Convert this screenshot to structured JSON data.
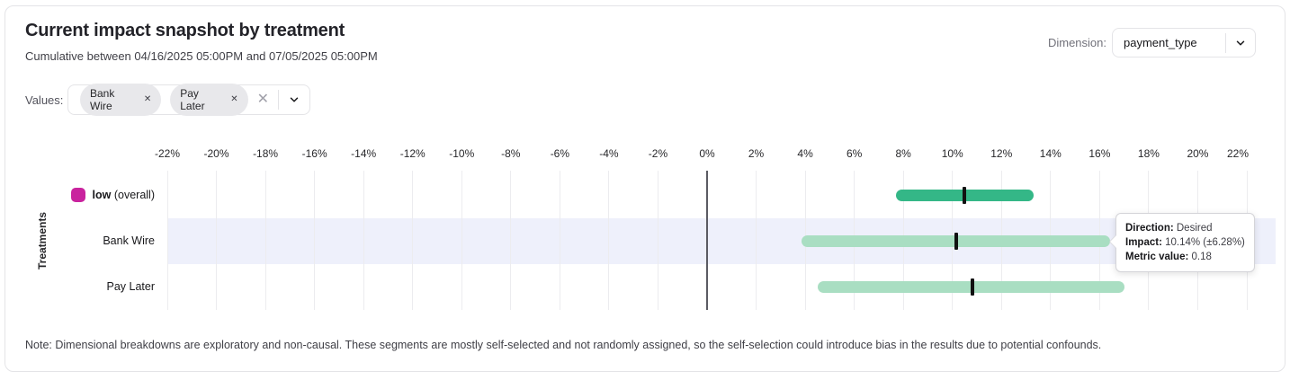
{
  "header": {
    "title": "Current impact snapshot by treatment",
    "subtitle": "Cumulative between 04/16/2025 05:00PM and 07/05/2025 05:00PM"
  },
  "dimension": {
    "label": "Dimension:",
    "selected": "payment_type"
  },
  "values_filter": {
    "label": "Values:",
    "chips": [
      {
        "label": "Bank Wire",
        "remove_icon": "x"
      },
      {
        "label": "Pay Later",
        "remove_icon": "x"
      }
    ],
    "clear_icon": "x",
    "chevron_icon": "chevron-down"
  },
  "chart_data": {
    "type": "bar",
    "subtype": "horizontal-interval-ci",
    "title": "Current impact snapshot by treatment",
    "ylabel": "Treatments",
    "axis": {
      "min": -22,
      "max": 22,
      "step": 2,
      "unit": "%"
    },
    "grid": true,
    "rows": [
      {
        "label": "low",
        "label_suffix": " (overall)",
        "bold": true,
        "swatch_color": "#c9239e",
        "impact": 10.5,
        "ci_low": 7.7,
        "ci_high": 13.3,
        "bar_color": "#34b787",
        "highlighted": false
      },
      {
        "label": "Bank Wire",
        "label_suffix": "",
        "bold": false,
        "swatch_color": null,
        "impact": 10.14,
        "ci_low": 3.86,
        "ci_high": 16.42,
        "bar_color": "#a9dec2",
        "highlighted": true
      },
      {
        "label": "Pay Later",
        "label_suffix": "",
        "bold": false,
        "swatch_color": null,
        "impact": 10.8,
        "ci_low": 4.5,
        "ci_high": 17.0,
        "bar_color": "#a9dec2",
        "highlighted": false
      }
    ],
    "colors": {
      "gridline": "#ececef",
      "zero_line": "#5b5b63",
      "highlight_band": "#eef0fb",
      "interval_tick": "#121212",
      "overall_bar": "#34b787",
      "segment_bar": "#a9dec2",
      "legend_swatch": "#c9239e"
    }
  },
  "tooltip": {
    "direction_label": "Direction:",
    "direction_value": "Desired",
    "impact_label": "Impact:",
    "impact_value": "10.14% (±6.28%)",
    "metric_label": "Metric value:",
    "metric_value": "0.18"
  },
  "note": "Note: Dimensional breakdowns are exploratory and non-causal. These segments are mostly self-selected and not randomly assigned, so the self-selection could introduce bias in the results due to potential confounds."
}
